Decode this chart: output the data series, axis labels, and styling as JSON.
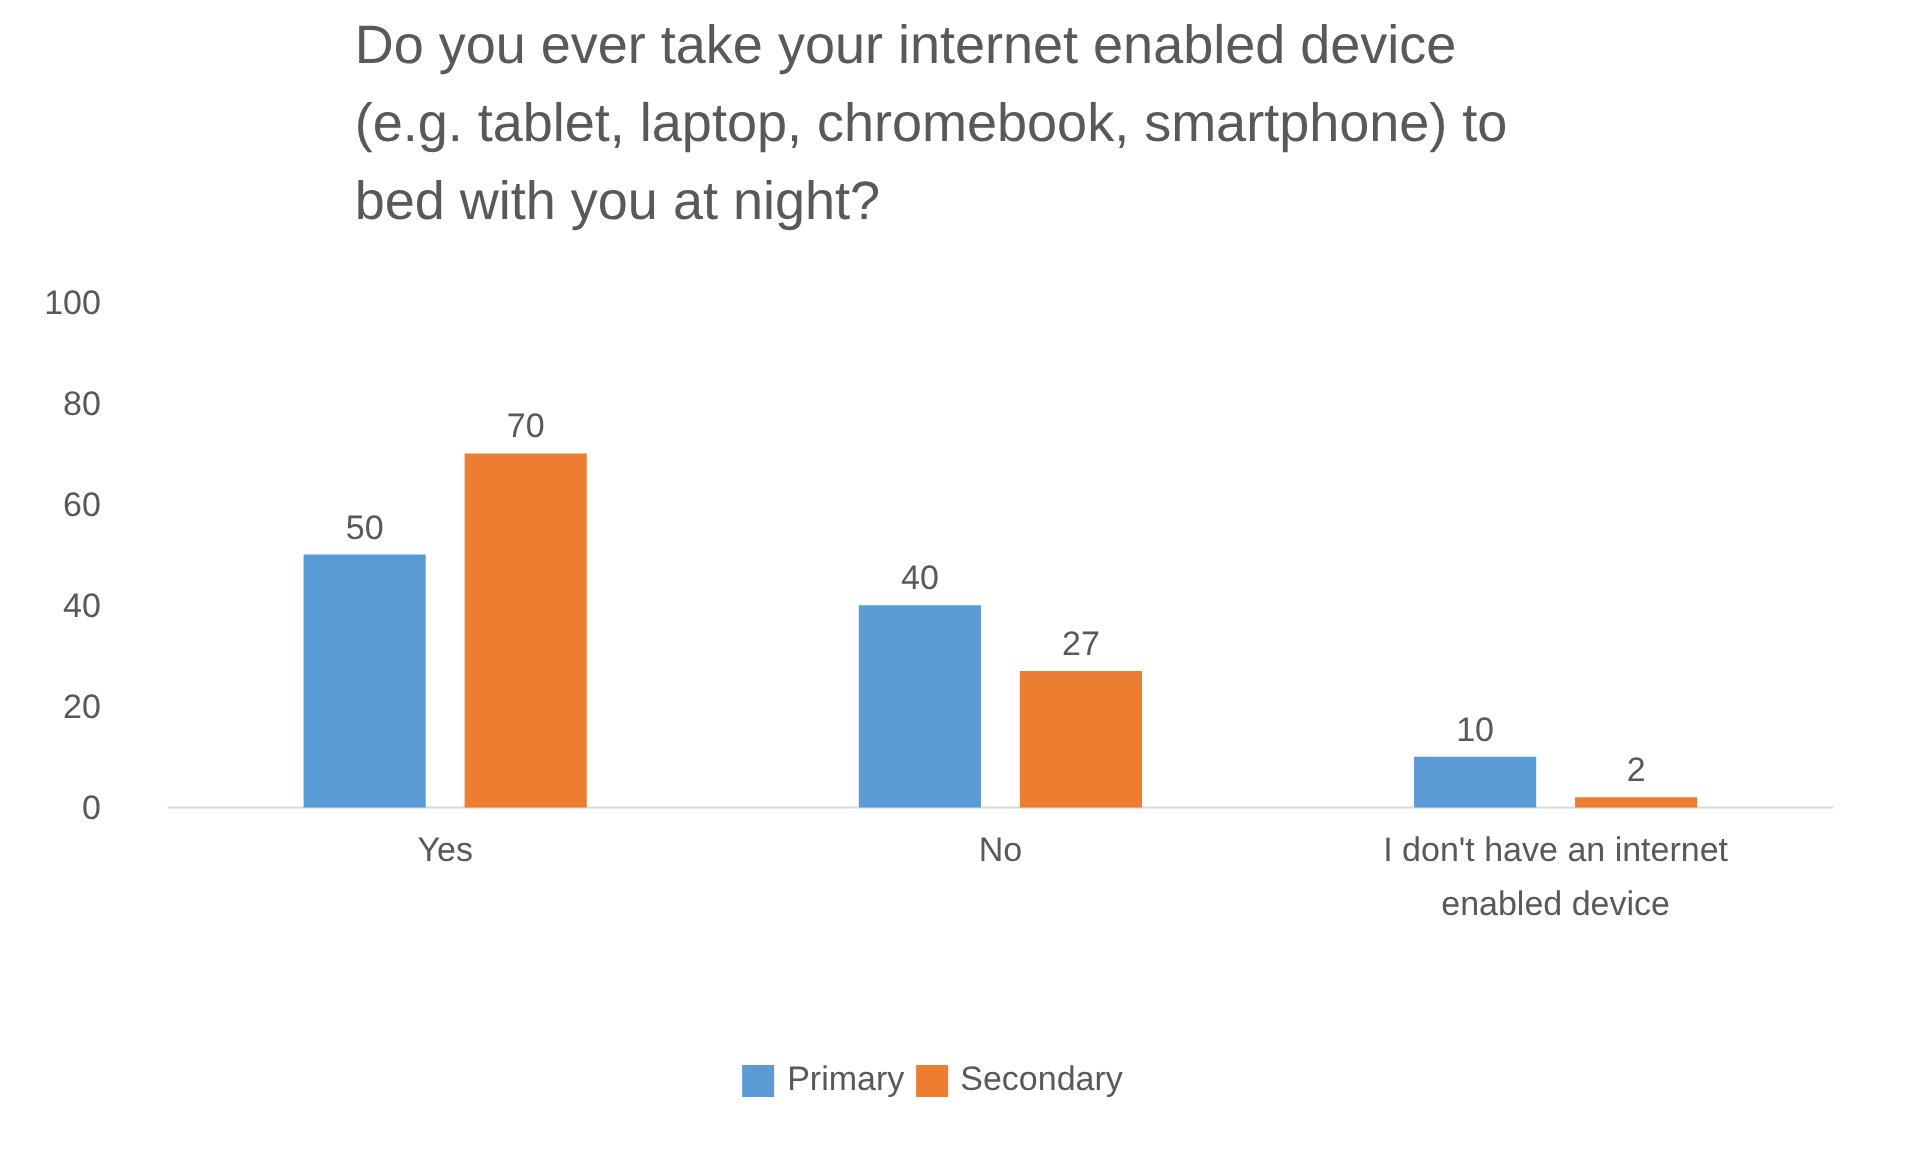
{
  "chart_data": {
    "type": "bar",
    "title": "Do you ever take your internet enabled device (e.g. tablet, laptop, chromebook, smartphone) to bed with you at night?",
    "categories": [
      "Yes",
      "No",
      "I don't have an internet enabled device"
    ],
    "series": [
      {
        "name": "Primary",
        "color": "#5b9bd5",
        "values": [
          50,
          40,
          10
        ]
      },
      {
        "name": "Secondary",
        "color": "#ed7d31",
        "values": [
          70,
          27,
          2
        ]
      }
    ],
    "ylim": [
      0,
      100
    ],
    "yticks": [
      0,
      20,
      40,
      60,
      80,
      100
    ],
    "grid": false,
    "legend": "bottom",
    "data_labels": true
  }
}
